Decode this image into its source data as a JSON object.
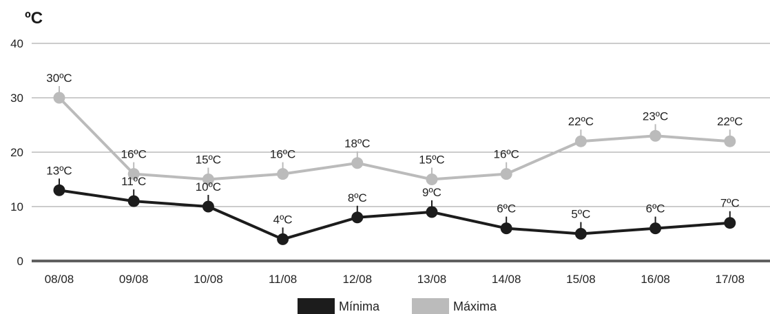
{
  "chart_data": {
    "type": "line",
    "ylabel": "ºC",
    "ylim": [
      0,
      40
    ],
    "yticks": [
      0,
      10,
      20,
      30,
      40
    ],
    "grid": true,
    "legend_position": "bottom-center",
    "categories": [
      "08/08",
      "09/08",
      "10/08",
      "11/08",
      "12/08",
      "13/08",
      "14/08",
      "15/08",
      "16/08",
      "17/08"
    ],
    "series": [
      {
        "name": "Máxima",
        "color": "#bbbbbb",
        "values": [
          30,
          16,
          15,
          16,
          18,
          15,
          16,
          22,
          23,
          22
        ],
        "labels": [
          "30ºC",
          "16ºC",
          "15ºC",
          "16ºC",
          "18ºC",
          "15ºC",
          "16ºC",
          "22ºC",
          "23ºC",
          "22ºC"
        ]
      },
      {
        "name": "Mínima",
        "color": "#1c1c1c",
        "values": [
          13,
          11,
          10,
          4,
          8,
          9,
          6,
          5,
          6,
          7
        ],
        "labels": [
          "13ºC",
          "11ºC",
          "10ºC",
          "4ºC",
          "8ºC",
          "9ºC",
          "6ºC",
          "5ºC",
          "6ºC",
          "7ºC"
        ]
      }
    ],
    "legend": [
      "Mínima",
      "Máxima"
    ]
  }
}
